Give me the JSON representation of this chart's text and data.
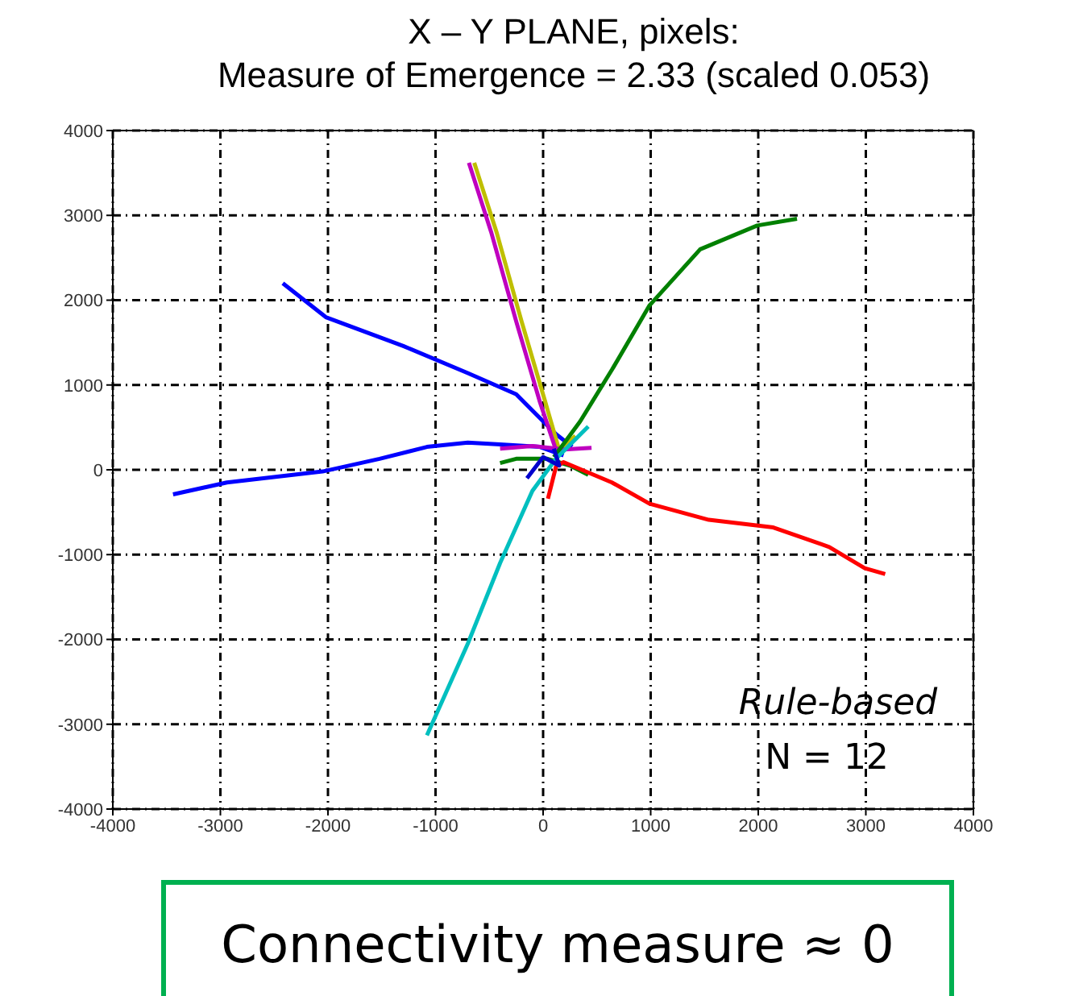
{
  "chart_data": {
    "type": "line",
    "title": "X – Y PLANE, pixels:",
    "subtitle": "Measure of Emergence = 2.33 (scaled 0.053)",
    "xlim": [
      -4000,
      4000
    ],
    "xticks": [
      -4000,
      -3000,
      -2000,
      -1000,
      0,
      1000,
      2000,
      3000,
      4000
    ],
    "ylim": [
      -4000,
      4000
    ],
    "yticks": [
      -4000,
      -3000,
      -2000,
      -1000,
      0,
      1000,
      2000,
      3000,
      4000
    ],
    "grid": true,
    "line_style": "solid",
    "annotations": [
      "Rule-based",
      "N = 12",
      "Connectivity measure ≈ 0"
    ],
    "series": [
      {
        "color": "#0000ff",
        "x": [
          -2420,
          -2020,
          -1300,
          -700,
          -250,
          120,
          270
        ],
        "values": [
          2200,
          1800,
          1460,
          1140,
          890,
          420,
          270
        ]
      },
      {
        "color": "#0000ff",
        "x": [
          -3440,
          -2940,
          -2050,
          -1520,
          -1080,
          -700,
          -400,
          -30,
          190
        ],
        "values": [
          -290,
          -150,
          -20,
          130,
          270,
          320,
          300,
          270,
          170
        ]
      },
      {
        "color": "#bfbf00",
        "x": [
          -640,
          -430,
          -200,
          20,
          150,
          300
        ],
        "values": [
          3620,
          2790,
          1750,
          800,
          230,
          400
        ]
      },
      {
        "color": "#bf00bf",
        "x": [
          -690,
          -480,
          -250,
          -30,
          120
        ],
        "values": [
          3620,
          2790,
          1750,
          800,
          230
        ]
      },
      {
        "color": "#bf00bf",
        "x": [
          -400,
          -100,
          200,
          450
        ],
        "values": [
          250,
          280,
          240,
          260
        ]
      },
      {
        "color": "#008000",
        "x": [
          100,
          344,
          640,
          990,
          1460,
          1990,
          2360
        ],
        "values": [
          150,
          570,
          1180,
          1940,
          2600,
          2880,
          2960
        ]
      },
      {
        "color": "#008000",
        "x": [
          -400,
          -250,
          40,
          250,
          420
        ],
        "values": [
          80,
          130,
          130,
          50,
          -60
        ]
      },
      {
        "color": "#ff0000",
        "x": [
          45,
          120,
          190,
          640,
          990,
          1540,
          2140,
          2660,
          2990,
          3180
        ],
        "values": [
          -340,
          40,
          90,
          -150,
          -400,
          -590,
          -680,
          -910,
          -1160,
          -1230
        ]
      },
      {
        "color": "#00bfbf",
        "x": [
          -1080,
          -700,
          -400,
          -100,
          120,
          420
        ],
        "values": [
          -3130,
          -2050,
          -1100,
          -250,
          130,
          510
        ]
      },
      {
        "color": "#0000cc",
        "x": [
          -150,
          0,
          150,
          100
        ],
        "values": [
          -100,
          150,
          50,
          250
        ]
      }
    ]
  }
}
